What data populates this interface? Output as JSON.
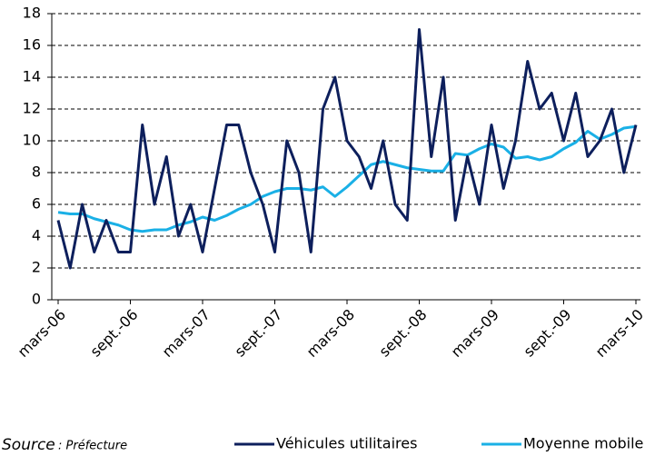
{
  "chart_data": {
    "type": "line",
    "categories": [
      "mars-06",
      null,
      null,
      null,
      null,
      null,
      "sept.-06",
      null,
      null,
      null,
      null,
      null,
      "mars-07",
      null,
      null,
      null,
      null,
      null,
      "sept.-07",
      null,
      null,
      null,
      null,
      null,
      "mars-08",
      null,
      null,
      null,
      null,
      null,
      "sept.-08",
      null,
      null,
      null,
      null,
      null,
      "mars-09",
      null,
      null,
      null,
      null,
      null,
      "sept.-09",
      null,
      null,
      null,
      null,
      null,
      "mars-10"
    ],
    "series": [
      {
        "name": "Véhicules utilitaires",
        "color": "#0d1f5c",
        "values": [
          5,
          2,
          6,
          3,
          5,
          3,
          3,
          11,
          6,
          9,
          4,
          6,
          3,
          7,
          11,
          11,
          8,
          6,
          3,
          10,
          8,
          3,
          12,
          14,
          10,
          9,
          7,
          10,
          6,
          5,
          17,
          9,
          14,
          5,
          9,
          6,
          11,
          7,
          10,
          15,
          12,
          13,
          10,
          13,
          9,
          10,
          12,
          8,
          11
        ]
      },
      {
        "name": "Moyenne mobile",
        "color": "#1ab0e6",
        "values": [
          5.5,
          5.4,
          5.4,
          5.1,
          4.9,
          4.7,
          4.4,
          4.3,
          4.4,
          4.4,
          4.7,
          4.9,
          5.2,
          5.0,
          5.3,
          5.7,
          6.0,
          6.5,
          6.8,
          7.0,
          7.0,
          6.9,
          7.1,
          6.5,
          7.1,
          7.8,
          8.5,
          8.7,
          8.5,
          8.3,
          8.2,
          8.1,
          8.1,
          9.2,
          9.1,
          9.5,
          9.8,
          9.6,
          8.9,
          9.0,
          8.8,
          9.0,
          9.5,
          9.9,
          10.6,
          10.1,
          10.4,
          10.8,
          10.9
        ]
      }
    ],
    "ylim": [
      0,
      18
    ],
    "yticks": [
      0,
      2,
      4,
      6,
      8,
      10,
      12,
      14,
      16,
      18
    ],
    "grid": true,
    "source_label": "Source",
    "source_value": ": Préfecture"
  }
}
